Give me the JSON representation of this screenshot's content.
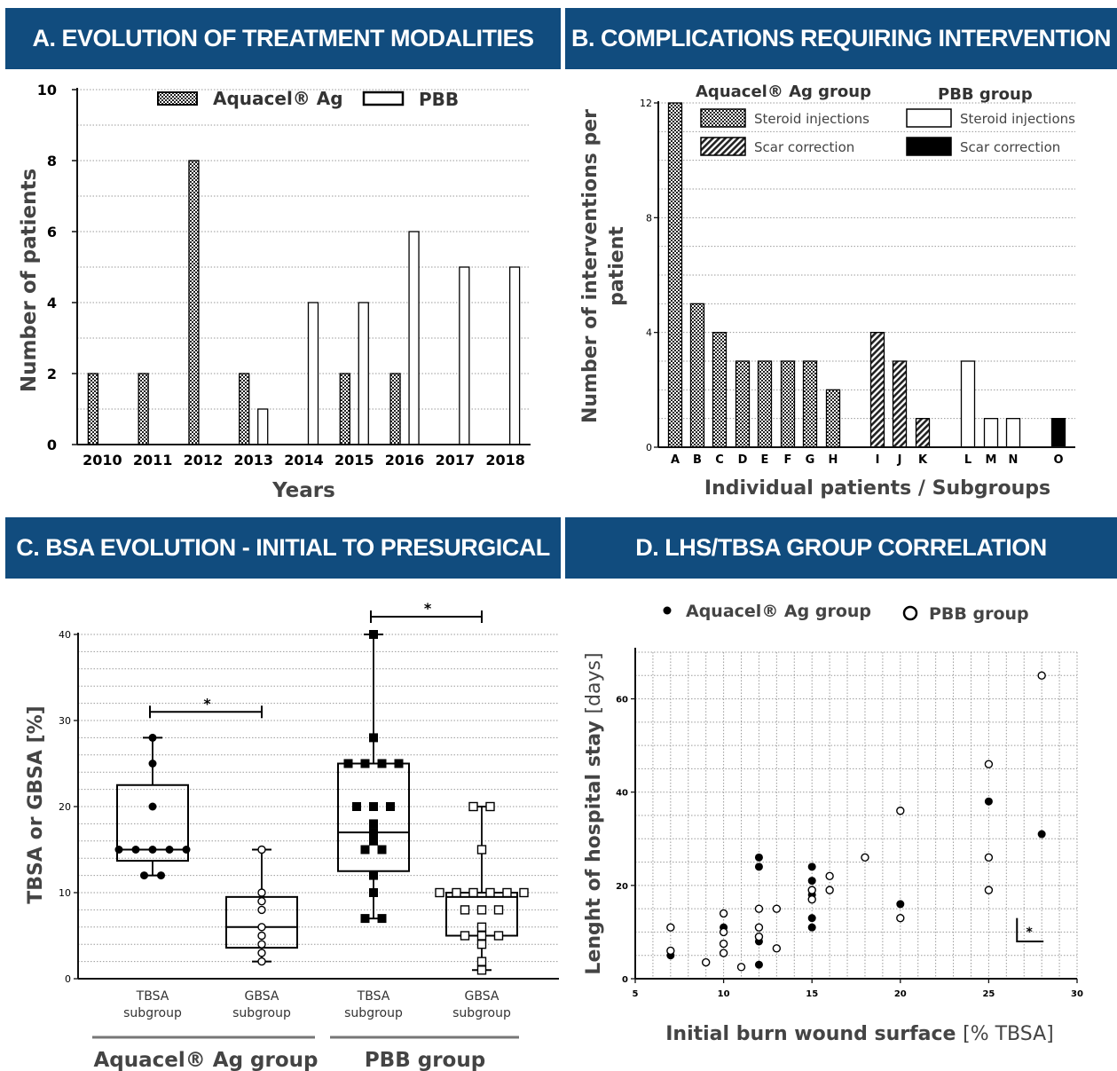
{
  "panels": {
    "a": {
      "title": "A. EVOLUTION OF TREATMENT MODALITIES"
    },
    "b": {
      "title": "B. COMPLICATIONS REQUIRING INTERVENTION"
    },
    "c": {
      "title": "C. BSA EVOLUTION - INITIAL TO PRESURGICAL"
    },
    "d": {
      "title": "D. LHS/TBSA GROUP CORRELATION"
    }
  },
  "colors": {
    "banner": "#114c7e",
    "axis": "#111111",
    "grid": "#9a9a9a",
    "fill_black": "#000000"
  },
  "chart_data": [
    {
      "type": "bar",
      "categories": [
        "2010",
        "2011",
        "2012",
        "2013",
        "2014",
        "2015",
        "2016",
        "2017",
        "2018"
      ],
      "series": [
        {
          "name": "Aquacel® Ag",
          "pattern": "checker",
          "values": [
            2,
            2,
            8,
            2,
            0,
            2,
            2,
            0,
            0
          ]
        },
        {
          "name": "PBB",
          "pattern": "white",
          "values": [
            0,
            0,
            0,
            1,
            4,
            4,
            6,
            5,
            5
          ]
        }
      ],
      "ylim": [
        0,
        10
      ],
      "yticks": [
        "0",
        "2",
        "4",
        "6",
        "8",
        "10"
      ],
      "xlabel": "Years",
      "ylabel": "Number of patients",
      "grid": true,
      "legend": "top"
    },
    {
      "type": "bar",
      "categories": [
        "A",
        "B",
        "C",
        "D",
        "E",
        "F",
        "G",
        "H",
        "I",
        "J",
        "K",
        "L",
        "M",
        "N",
        "O"
      ],
      "subgroups": [
        {
          "name": "Aquacel® Ag group",
          "items": [
            {
              "label": "Steroid injections",
              "pattern": "checker"
            },
            {
              "label": "Scar correction",
              "pattern": "hatch"
            }
          ]
        },
        {
          "name": "PBB group",
          "items": [
            {
              "label": "Steroid injections",
              "pattern": "white"
            },
            {
              "label": "Scar correction",
              "pattern": "black"
            }
          ]
        }
      ],
      "bars": [
        {
          "category": "A",
          "value": 12,
          "pattern": "checker"
        },
        {
          "category": "B",
          "value": 5,
          "pattern": "checker"
        },
        {
          "category": "C",
          "value": 4,
          "pattern": "checker"
        },
        {
          "category": "D",
          "value": 3,
          "pattern": "checker"
        },
        {
          "category": "E",
          "value": 3,
          "pattern": "checker"
        },
        {
          "category": "F",
          "value": 3,
          "pattern": "checker"
        },
        {
          "category": "G",
          "value": 3,
          "pattern": "checker"
        },
        {
          "category": "H",
          "value": 2,
          "pattern": "checker"
        },
        {
          "category": "I",
          "value": 4,
          "pattern": "hatch"
        },
        {
          "category": "J",
          "value": 3,
          "pattern": "hatch"
        },
        {
          "category": "K",
          "value": 1,
          "pattern": "hatch"
        },
        {
          "category": "L",
          "value": 3,
          "pattern": "white"
        },
        {
          "category": "M",
          "value": 1,
          "pattern": "white"
        },
        {
          "category": "N",
          "value": 1,
          "pattern": "white"
        },
        {
          "category": "O",
          "value": 1,
          "pattern": "black"
        }
      ],
      "ylim": [
        0,
        12
      ],
      "yticks": [
        "0",
        "4",
        "8",
        "12"
      ],
      "xlabel": "Individual patients / Subgroups",
      "ylabel_lines": [
        "Number of interventions per",
        "patient"
      ],
      "grid": true,
      "legend": "top"
    },
    {
      "type": "box",
      "ylim": [
        0,
        40
      ],
      "yticks": [
        "0",
        "10",
        "20",
        "30",
        "40"
      ],
      "ylabel": "TBSA or GBSA [%]",
      "groups": [
        {
          "label_lines": [
            "TBSA",
            "subgroup"
          ],
          "marker": "filled-circle",
          "min": 12,
          "q1": 13.7,
          "median": 15,
          "q3": 22.5,
          "max": 28,
          "points": [
            28,
            25,
            20,
            15,
            15,
            15,
            15,
            15,
            12,
            12
          ]
        },
        {
          "label_lines": [
            "GBSA",
            "subgroup"
          ],
          "marker": "open-circle",
          "min": 2,
          "q1": 3.6,
          "median": 6,
          "q3": 9.5,
          "max": 15,
          "points": [
            15,
            10,
            9,
            8,
            6,
            5,
            4,
            3,
            2
          ]
        },
        {
          "label_lines": [
            "TBSA",
            "subgroup"
          ],
          "marker": "filled-square",
          "min": 7,
          "q1": 12.5,
          "median": 17,
          "q3": 25,
          "max": 40,
          "points": [
            40,
            28,
            25,
            25,
            25,
            25,
            20,
            20,
            20,
            18,
            17,
            16,
            15,
            15,
            12,
            10,
            7,
            7
          ]
        },
        {
          "label_lines": [
            "GBSA",
            "subgroup"
          ],
          "marker": "open-square",
          "min": 1,
          "q1": 5,
          "median": 9.5,
          "q3": 10,
          "max": 20,
          "points": [
            20,
            20,
            15,
            10,
            10,
            10,
            10,
            10,
            10,
            8,
            8,
            8,
            6,
            5,
            5,
            5,
            4,
            2,
            1
          ]
        }
      ],
      "group_labels": [
        {
          "name": "Aquacel® Ag group",
          "boxes": [
            0,
            1
          ]
        },
        {
          "name": "PBB group",
          "boxes": [
            2,
            3
          ]
        }
      ],
      "significance": [
        {
          "from": 0,
          "to": 1,
          "y": 31,
          "label": "*"
        },
        {
          "from": 2,
          "to": 3,
          "y": 42,
          "label": "*"
        }
      ]
    },
    {
      "type": "scatter",
      "xlim": [
        5,
        30
      ],
      "ylim": [
        0,
        70
      ],
      "xticks": [
        "5",
        "10",
        "15",
        "20",
        "25",
        "30"
      ],
      "yticks": [
        "0",
        "20",
        "40",
        "60"
      ],
      "xlabel": "Initial burn wound surface",
      "xlabel_unit": "[% TBSA]",
      "ylabel": "Lenght of hospital stay",
      "ylabel_unit": "[days]",
      "series": [
        {
          "name": "Aquacel® Ag group",
          "marker": "filled-circle",
          "points": [
            [
              7,
              5
            ],
            [
              10,
              11
            ],
            [
              12,
              26
            ],
            [
              12,
              24
            ],
            [
              12,
              9
            ],
            [
              12,
              8
            ],
            [
              12,
              3
            ],
            [
              15,
              24
            ],
            [
              15,
              21
            ],
            [
              15,
              19
            ],
            [
              15,
              18
            ],
            [
              15,
              13
            ],
            [
              15,
              11
            ],
            [
              20,
              16
            ],
            [
              25,
              38
            ],
            [
              28,
              31
            ]
          ]
        },
        {
          "name": "PBB group",
          "marker": "open-circle",
          "points": [
            [
              7,
              11
            ],
            [
              7,
              6
            ],
            [
              9,
              3.5
            ],
            [
              10,
              14
            ],
            [
              10,
              10
            ],
            [
              10,
              7.5
            ],
            [
              10,
              5.5
            ],
            [
              11,
              2.5
            ],
            [
              12,
              15
            ],
            [
              12,
              11
            ],
            [
              12,
              9
            ],
            [
              13,
              15
            ],
            [
              13,
              6.5
            ],
            [
              15,
              19
            ],
            [
              15,
              17
            ],
            [
              16,
              22
            ],
            [
              16,
              19
            ],
            [
              18,
              26
            ],
            [
              20,
              36
            ],
            [
              20,
              13
            ],
            [
              25,
              46
            ],
            [
              25,
              26
            ],
            [
              25,
              19
            ],
            [
              28,
              65
            ]
          ]
        }
      ],
      "annotation": "*",
      "grid": true,
      "legend": "top"
    }
  ]
}
